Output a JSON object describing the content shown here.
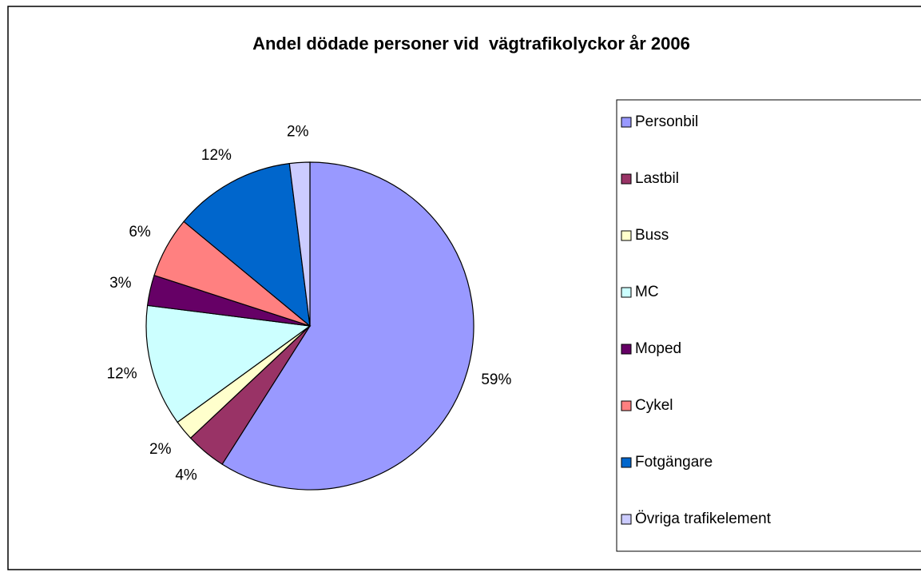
{
  "chart_data": {
    "type": "pie",
    "title": "Andel dödade personer vid  vägtrafikolyckor år 2006",
    "categories": [
      "Personbil",
      "Lastbil",
      "Buss",
      "MC",
      "Moped",
      "Cykel",
      "Fotgängare",
      "Övriga trafikelement"
    ],
    "values": [
      59,
      4,
      2,
      12,
      3,
      6,
      12,
      2
    ],
    "value_labels": [
      "59%",
      "4%",
      "2%",
      "12%",
      "3%",
      "6%",
      "12%",
      "2%"
    ],
    "colors": [
      "#9999ff",
      "#993366",
      "#ffffcc",
      "#ccffff",
      "#660066",
      "#ff8080",
      "#0066cc",
      "#ccccff"
    ],
    "legend": "right"
  }
}
